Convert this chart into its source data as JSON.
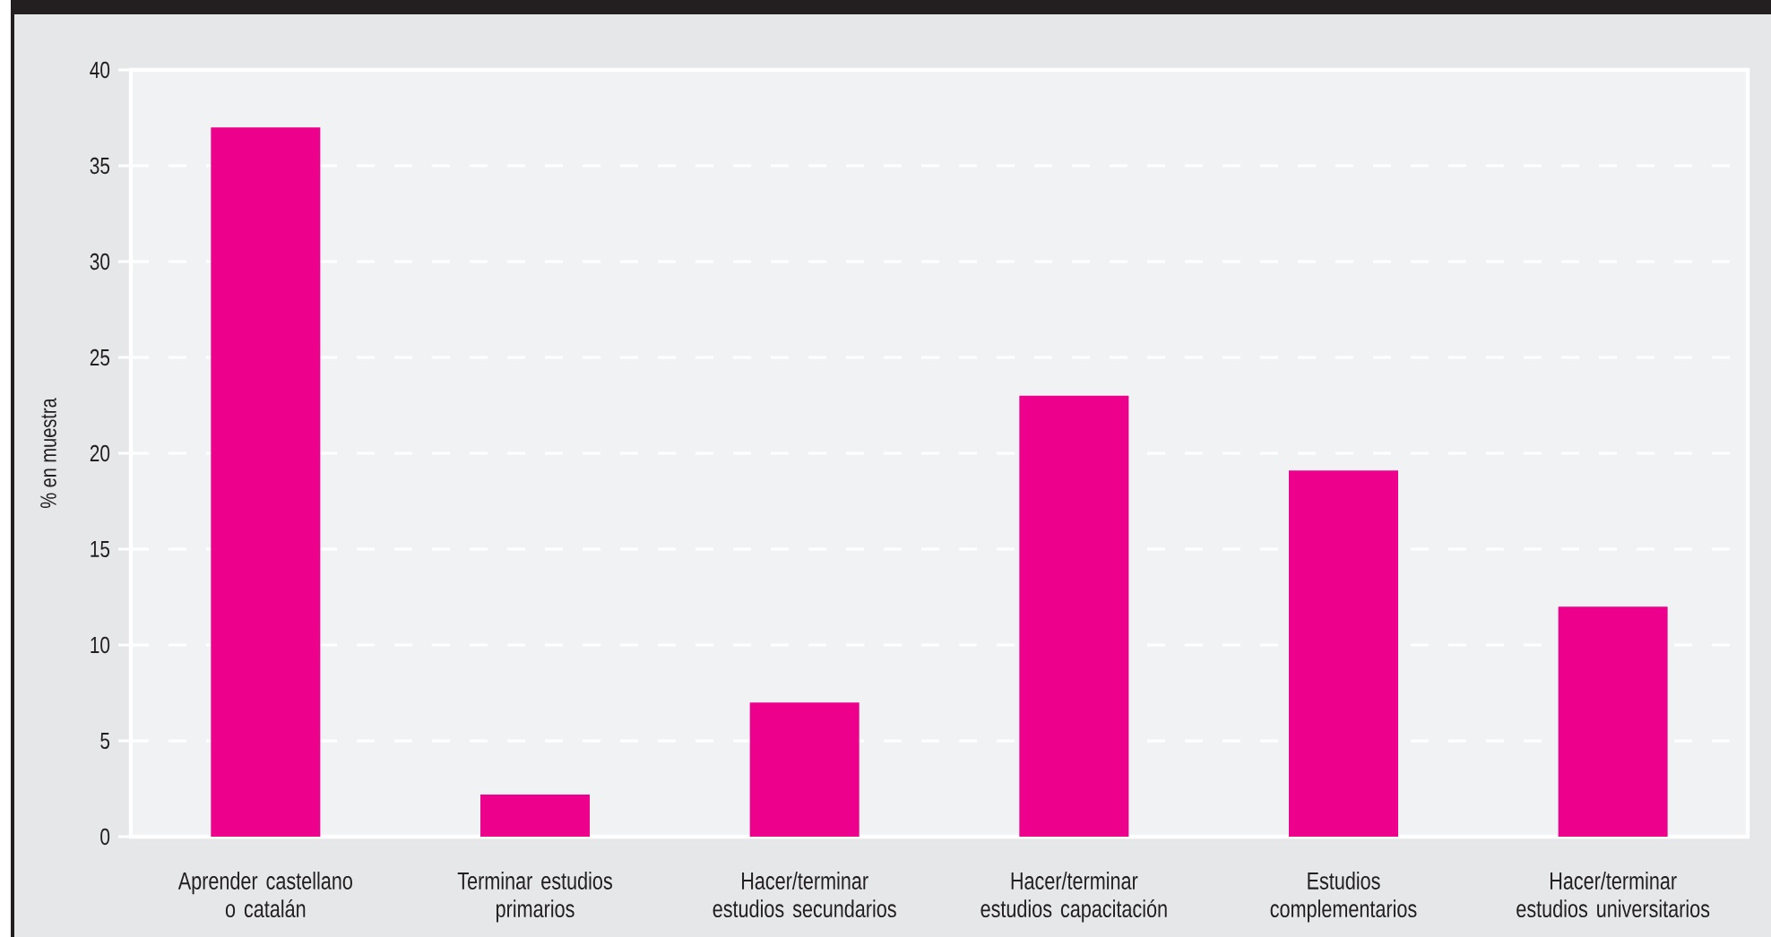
{
  "chart_data": {
    "type": "bar",
    "ylabel": "% en muestra",
    "categories": [
      "Aprender castellano\no catalán",
      "Terminar estudios\nprimarios",
      "Hacer/terminar\nestudios secundarios",
      "Hacer/terminar\nestudios capacitación",
      "Estudios\ncomplementarios",
      "Hacer/terminar\nestudios universitarios"
    ],
    "values": [
      37,
      2.2,
      7,
      23,
      19.1,
      12
    ],
    "color": "#ec008c",
    "ylim": [
      0,
      40
    ],
    "yticks": [
      0,
      5,
      10,
      15,
      20,
      25,
      30,
      35,
      40
    ],
    "grid": "y"
  }
}
